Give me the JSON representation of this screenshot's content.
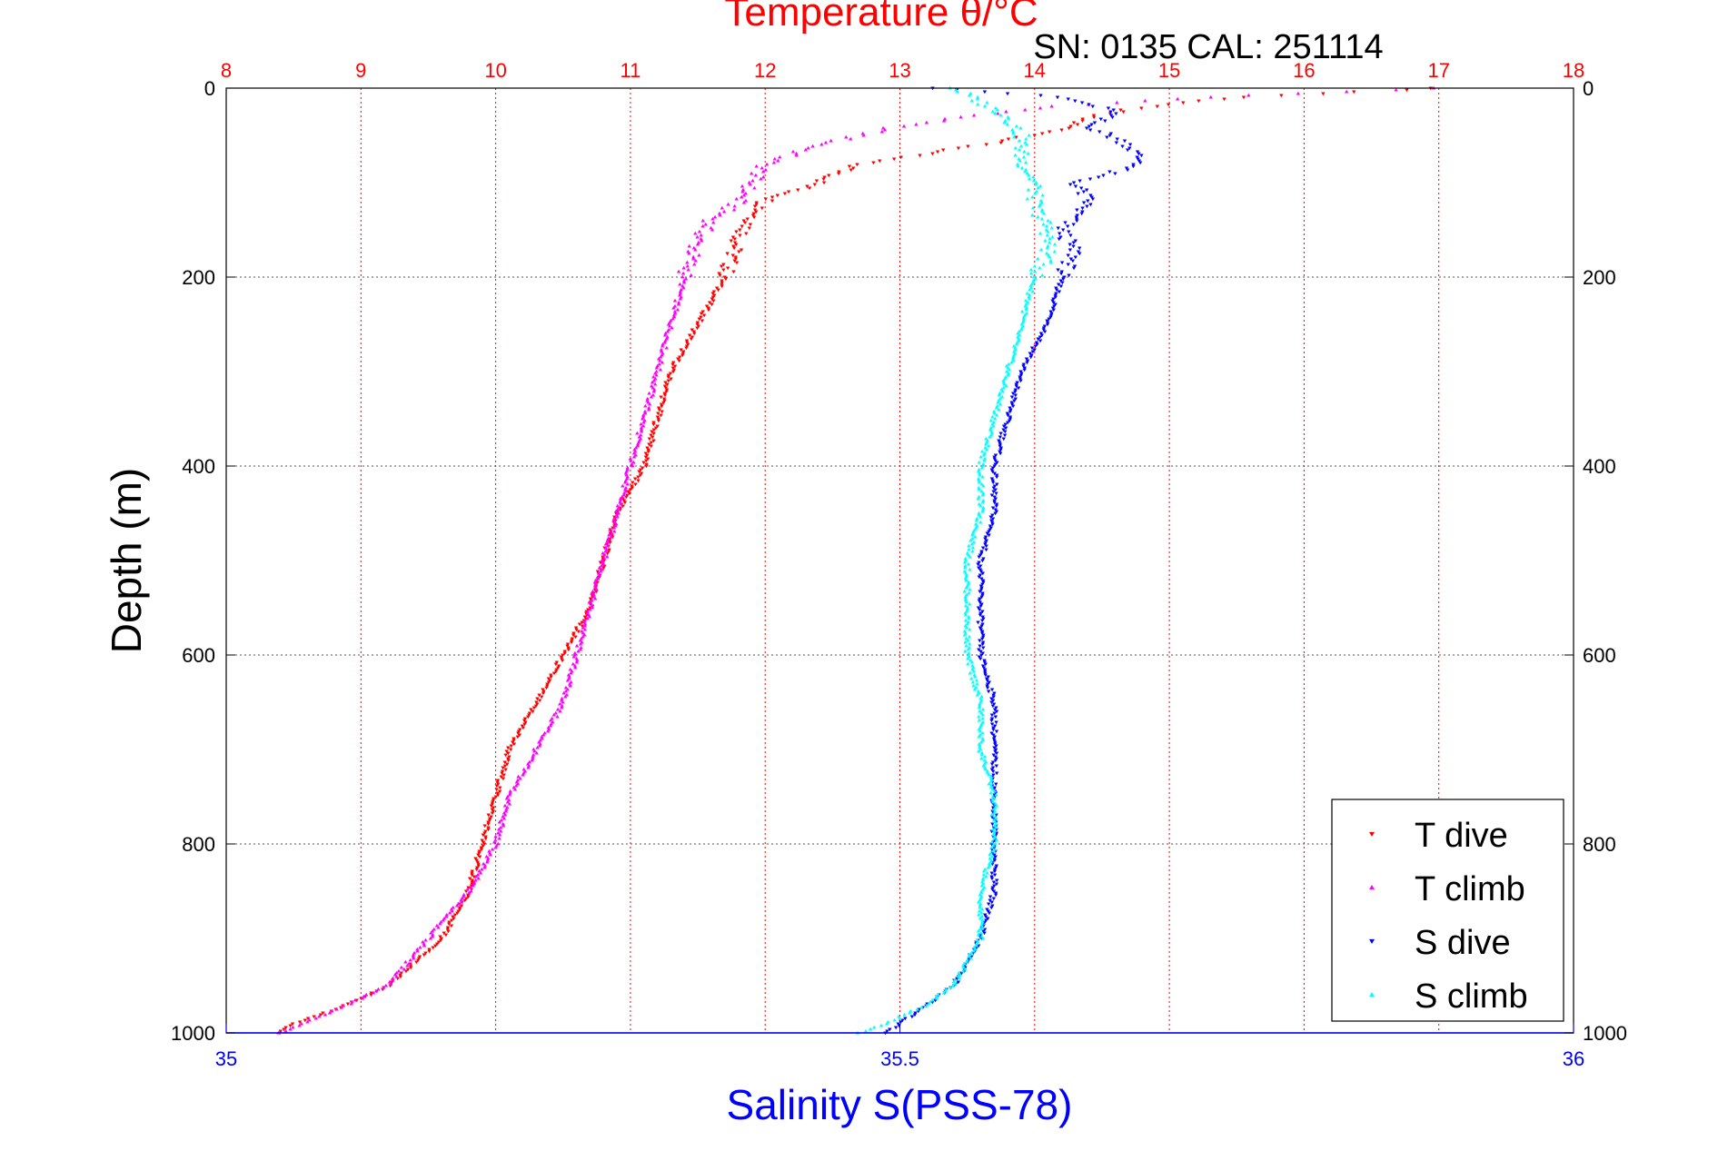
{
  "chart_data": {
    "type": "scatter",
    "title": "Temperature θ/°C",
    "subtitle": "SN: 0135  CAL: 251114",
    "ylabel": "Depth (m)",
    "xlabel_bottom": "Salinity S(PSS-78)",
    "y_axis": {
      "range": [
        0,
        1000
      ],
      "reversed": true,
      "ticks": [
        0,
        200,
        400,
        600,
        800,
        1000
      ]
    },
    "x_top": {
      "quantity": "temperature",
      "range": [
        8,
        18
      ],
      "ticks": [
        8,
        9,
        10,
        11,
        12,
        13,
        14,
        15,
        16,
        17,
        18
      ]
    },
    "x_bottom": {
      "quantity": "salinity",
      "range": [
        35,
        36
      ],
      "ticks": [
        "35",
        "35.5",
        "36"
      ]
    },
    "grid": true,
    "legend": {
      "placement": "bottom-right",
      "entries": [
        "T dive",
        "T climb",
        "S dive",
        "S climb"
      ]
    },
    "colors": {
      "T dive": "#ff0000",
      "T climb": "#ff00ff",
      "S dive": "#0000ff",
      "S climb": "#00ffff",
      "title": "#ff0000",
      "salinity_axis": "#0000ff",
      "temperature_axis": "#ff0000"
    },
    "series": [
      {
        "name": "T dive",
        "axis": "temperature",
        "marker": "triangle-down",
        "depth": [
          0,
          10,
          20,
          30,
          45,
          60,
          80,
          100,
          120,
          140,
          160,
          200,
          250,
          300,
          350,
          400,
          450,
          500,
          550,
          600,
          650,
          700,
          750,
          800,
          850,
          900,
          950,
          970,
          990,
          1000
        ],
        "values": [
          17.0,
          15.5,
          14.8,
          14.4,
          14.2,
          13.6,
          12.7,
          12.4,
          12.0,
          11.9,
          11.8,
          11.7,
          11.5,
          11.3,
          11.2,
          11.1,
          10.9,
          10.8,
          10.7,
          10.5,
          10.3,
          10.1,
          10.0,
          9.9,
          9.8,
          9.6,
          9.2,
          8.9,
          8.5,
          8.4
        ]
      },
      {
        "name": "T climb",
        "axis": "temperature",
        "marker": "triangle-up",
        "depth": [
          0,
          10,
          20,
          30,
          40,
          60,
          80,
          100,
          120,
          140,
          160,
          200,
          250,
          300,
          350,
          400,
          450,
          500,
          550,
          600,
          650,
          700,
          750,
          800,
          850,
          900,
          950,
          970,
          1000
        ],
        "values": [
          17.0,
          15.2,
          14.1,
          13.5,
          13.0,
          12.4,
          12.0,
          11.9,
          11.8,
          11.6,
          11.5,
          11.4,
          11.3,
          11.2,
          11.1,
          11.0,
          10.9,
          10.8,
          10.7,
          10.6,
          10.5,
          10.3,
          10.1,
          10.0,
          9.8,
          9.5,
          9.2,
          8.9,
          8.4
        ]
      },
      {
        "name": "S dive",
        "axis": "salinity",
        "marker": "triangle-down",
        "depth": [
          0,
          10,
          25,
          40,
          60,
          80,
          100,
          120,
          150,
          175,
          200,
          250,
          300,
          350,
          400,
          450,
          500,
          550,
          600,
          650,
          700,
          750,
          800,
          850,
          900,
          950,
          970,
          990,
          1000
        ],
        "values": [
          35.53,
          35.62,
          35.66,
          35.64,
          35.67,
          35.68,
          35.63,
          35.64,
          35.62,
          35.63,
          35.62,
          35.61,
          35.59,
          35.58,
          35.57,
          35.57,
          35.56,
          35.56,
          35.56,
          35.57,
          35.57,
          35.57,
          35.57,
          35.57,
          35.56,
          35.54,
          35.52,
          35.5,
          35.49
        ]
      },
      {
        "name": "S climb",
        "axis": "salinity",
        "marker": "triangle-up",
        "depth": [
          0,
          15,
          30,
          50,
          75,
          100,
          125,
          150,
          175,
          200,
          250,
          300,
          350,
          400,
          450,
          500,
          550,
          600,
          650,
          700,
          750,
          800,
          850,
          900,
          950,
          970,
          990,
          1000
        ],
        "values": [
          35.54,
          35.56,
          35.58,
          35.59,
          35.59,
          35.6,
          35.6,
          35.61,
          35.61,
          35.6,
          35.59,
          35.58,
          35.57,
          35.56,
          35.56,
          35.55,
          35.55,
          35.55,
          35.56,
          35.56,
          35.57,
          35.57,
          35.56,
          35.56,
          35.54,
          35.52,
          35.49,
          35.47
        ]
      }
    ]
  }
}
